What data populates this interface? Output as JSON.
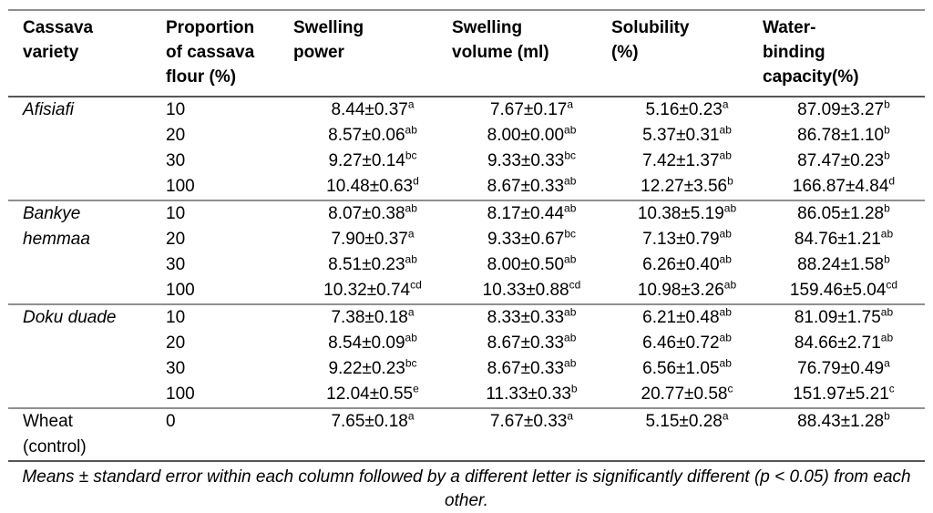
{
  "table": {
    "columns": [
      "Cassava variety",
      "Proportion of cassava flour (%)",
      "Swelling power",
      "Swelling volume (ml)",
      "Solubility (%)",
      "Water-binding capacity(%)"
    ],
    "groups": [
      {
        "variety": "Afisiafi",
        "rows": [
          {
            "proportion": "10",
            "swelling_power": "8.44±0.37",
            "swelling_power_sup": "a",
            "swelling_volume": "7.67±0.17",
            "swelling_volume_sup": "a",
            "solubility": "5.16±0.23",
            "solubility_sup": "a",
            "water_binding": "87.09±3.27",
            "water_binding_sup": "b"
          },
          {
            "proportion": "20",
            "swelling_power": "8.57±0.06",
            "swelling_power_sup": "ab",
            "swelling_volume": "8.00±0.00",
            "swelling_volume_sup": "ab",
            "solubility": "5.37±0.31",
            "solubility_sup": "ab",
            "water_binding": "86.78±1.10",
            "water_binding_sup": "b"
          },
          {
            "proportion": "30",
            "swelling_power": "9.27±0.14",
            "swelling_power_sup": "bc",
            "swelling_volume": "9.33±0.33",
            "swelling_volume_sup": "bc",
            "solubility": "7.42±1.37",
            "solubility_sup": "ab",
            "water_binding": "87.47±0.23",
            "water_binding_sup": "b"
          },
          {
            "proportion": "100",
            "swelling_power": "10.48±0.63",
            "swelling_power_sup": "d",
            "swelling_volume": "8.67±0.33",
            "swelling_volume_sup": "ab",
            "solubility": "12.27±3.56",
            "solubility_sup": "b",
            "water_binding": "166.87±4.84",
            "water_binding_sup": "d"
          }
        ]
      },
      {
        "variety": "Bankye hemmaa",
        "rows": [
          {
            "proportion": "10",
            "swelling_power": "8.07±0.38",
            "swelling_power_sup": "ab",
            "swelling_volume": "8.17±0.44",
            "swelling_volume_sup": "ab",
            "solubility": "10.38±5.19",
            "solubility_sup": "ab",
            "water_binding": "86.05±1.28",
            "water_binding_sup": "b"
          },
          {
            "proportion": "20",
            "swelling_power": "7.90±0.37",
            "swelling_power_sup": "a",
            "swelling_volume": "9.33±0.67",
            "swelling_volume_sup": "bc",
            "solubility": "7.13±0.79",
            "solubility_sup": "ab",
            "water_binding": "84.76±1.21",
            "water_binding_sup": "ab"
          },
          {
            "proportion": "30",
            "swelling_power": "8.51±0.23",
            "swelling_power_sup": "ab",
            "swelling_volume": "8.00±0.50",
            "swelling_volume_sup": "ab",
            "solubility": "6.26±0.40",
            "solubility_sup": "ab",
            "water_binding": "88.24±1.58",
            "water_binding_sup": "b"
          },
          {
            "proportion": "100",
            "swelling_power": "10.32±0.74",
            "swelling_power_sup": "cd",
            "swelling_volume": "10.33±0.88",
            "swelling_volume_sup": "cd",
            "solubility": "10.98±3.26",
            "solubility_sup": "ab",
            "water_binding": "159.46±5.04",
            "water_binding_sup": "cd"
          }
        ]
      },
      {
        "variety": "Doku duade",
        "rows": [
          {
            "proportion": "10",
            "swelling_power": "7.38±0.18",
            "swelling_power_sup": "a",
            "swelling_volume": "8.33±0.33",
            "swelling_volume_sup": "ab",
            "solubility": "6.21±0.48",
            "solubility_sup": "ab",
            "water_binding": "81.09±1.75",
            "water_binding_sup": "ab"
          },
          {
            "proportion": "20",
            "swelling_power": "8.54±0.09",
            "swelling_power_sup": "ab",
            "swelling_volume": "8.67±0.33",
            "swelling_volume_sup": "ab",
            "solubility": "6.46±0.72",
            "solubility_sup": "ab",
            "water_binding": "84.66±2.71",
            "water_binding_sup": "ab"
          },
          {
            "proportion": "30",
            "swelling_power": "9.22±0.23",
            "swelling_power_sup": "bc",
            "swelling_volume": "8.67±0.33",
            "swelling_volume_sup": "ab",
            "solubility": "6.56±1.05",
            "solubility_sup": "ab",
            "water_binding": "76.79±0.49",
            "water_binding_sup": "a"
          },
          {
            "proportion": "100",
            "swelling_power": "12.04±0.55",
            "swelling_power_sup": "e",
            "swelling_volume": "11.33±0.33",
            "swelling_volume_sup": "b",
            "solubility": "20.77±0.58",
            "solubility_sup": "c",
            "water_binding": "151.97±5.21",
            "water_binding_sup": "c"
          }
        ]
      },
      {
        "variety": "Wheat (control)",
        "rows": [
          {
            "proportion": "0",
            "swelling_power": "7.65±0.18",
            "swelling_power_sup": "a",
            "swelling_volume": "7.67±0.33",
            "swelling_volume_sup": "a",
            "solubility": "5.15±0.28",
            "solubility_sup": "a",
            "water_binding": "88.43±1.28",
            "water_binding_sup": "b"
          }
        ]
      }
    ],
    "footnote": "Means ± standard error within each column followed by a different letter is significantly different (p < 0.05) from each other."
  }
}
